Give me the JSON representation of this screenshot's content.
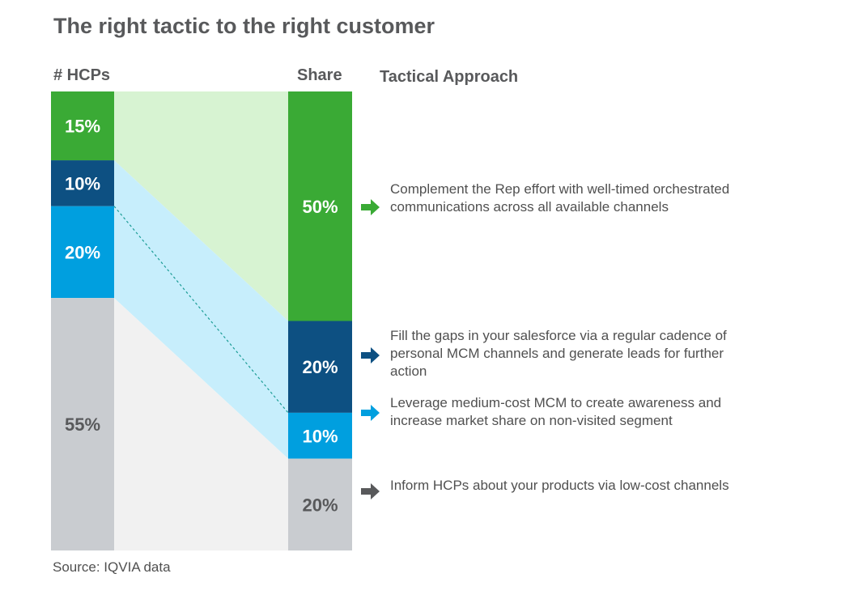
{
  "title": "The right tactic to the right customer",
  "source": "Source: IQVIA data",
  "headers": {
    "hcps": "# HCPs",
    "share": "Share",
    "approach": "Tactical Approach"
  },
  "colors": {
    "green": "#3aaa35",
    "navy": "#0d5082",
    "blue": "#009fdf",
    "gray": "#c9ccd0",
    "green_band": "#d7f3d2",
    "blue_band": "#c7eefc",
    "gray_band": "#f1f1f1",
    "dashed_line": "#1b9c96",
    "arrow_gray": "#58595b"
  },
  "chart_data": {
    "type": "bar",
    "stacked": true,
    "orientation": "vertical",
    "categories": [
      "# HCPs",
      "Share"
    ],
    "series": [
      {
        "color": "green",
        "values": [
          15,
          50
        ],
        "labels": [
          "15%",
          "50%"
        ]
      },
      {
        "color": "navy",
        "values": [
          10,
          20
        ],
        "labels": [
          "10%",
          "20%"
        ]
      },
      {
        "color": "blue",
        "values": [
          20,
          10
        ],
        "labels": [
          "20%",
          "10%"
        ]
      },
      {
        "color": "gray",
        "values": [
          55,
          20
        ],
        "labels": [
          "55%",
          "20%"
        ]
      }
    ],
    "ylim": [
      0,
      100
    ],
    "legend": "none",
    "grid": false
  },
  "approaches": [
    {
      "color": "green",
      "text": "Complement the Rep effort with well-timed orchestrated communications across all available channels"
    },
    {
      "color": "navy",
      "text": "Fill the gaps in your salesforce via a regular cadence of personal MCM channels and generate leads for further action"
    },
    {
      "color": "blue",
      "text": "Leverage medium-cost MCM to create awareness and increase market share on non-visited segment"
    },
    {
      "color": "arrow_gray",
      "text": "Inform HCPs about your products via low-cost channels"
    }
  ]
}
